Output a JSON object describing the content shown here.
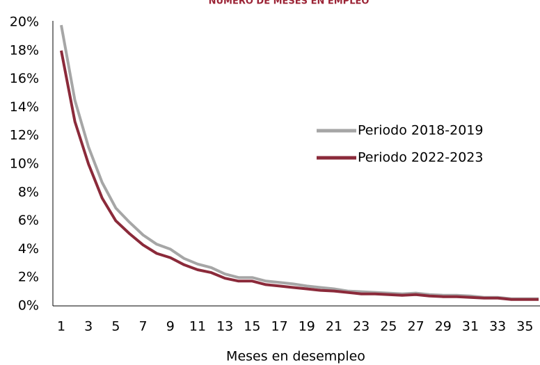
{
  "chart_data": {
    "type": "line",
    "title": "NÚMERO DE MESES EN EMPLEO",
    "x_label": "Meses en desempleo",
    "categories": [
      "1",
      null,
      "3",
      null,
      "5",
      null,
      "7",
      null,
      "9",
      null,
      "11",
      null,
      "13",
      null,
      "15",
      null,
      "17",
      null,
      "19",
      null,
      "21",
      null,
      "23",
      null,
      "25",
      null,
      "27",
      null,
      "29",
      null,
      "31",
      null,
      "33",
      null,
      "35",
      null
    ],
    "series": [
      {
        "name": "Periodo 2018-2019",
        "color": "#a6a6a6",
        "values": [
          19.8,
          14.5,
          11.2,
          8.7,
          6.9,
          5.9,
          5.0,
          4.35,
          4.0,
          3.35,
          2.95,
          2.7,
          2.25,
          2.0,
          2.0,
          1.75,
          1.65,
          1.55,
          1.4,
          1.3,
          1.2,
          1.05,
          1.0,
          0.95,
          0.9,
          0.85,
          0.9,
          0.8,
          0.75,
          0.75,
          0.7,
          0.6,
          0.6,
          0.5,
          0.5,
          0.5
        ]
      },
      {
        "name": "Periodo 2022-2023",
        "color": "#8b2a3a",
        "values": [
          18.0,
          13.0,
          10.0,
          7.6,
          6.0,
          5.1,
          4.3,
          3.7,
          3.4,
          2.9,
          2.55,
          2.35,
          1.95,
          1.75,
          1.75,
          1.5,
          1.4,
          1.3,
          1.2,
          1.1,
          1.05,
          0.95,
          0.85,
          0.85,
          0.8,
          0.75,
          0.8,
          0.7,
          0.65,
          0.65,
          0.6,
          0.55,
          0.55,
          0.45,
          0.45,
          0.45
        ]
      }
    ],
    "ylim": [
      0,
      20
    ],
    "yticks": [
      {
        "value": 0,
        "label": "0%"
      },
      {
        "value": 2,
        "label": "2%"
      },
      {
        "value": 4,
        "label": "4%"
      },
      {
        "value": 6,
        "label": "6%"
      },
      {
        "value": 8,
        "label": "8%"
      },
      {
        "value": 10,
        "label": "10%"
      },
      {
        "value": 12,
        "label": "12%"
      },
      {
        "value": 14,
        "label": "14%"
      },
      {
        "value": 16,
        "label": "16%"
      },
      {
        "value": 18,
        "label": "18%"
      },
      {
        "value": 20,
        "label": "20%"
      }
    ],
    "grid": false
  }
}
